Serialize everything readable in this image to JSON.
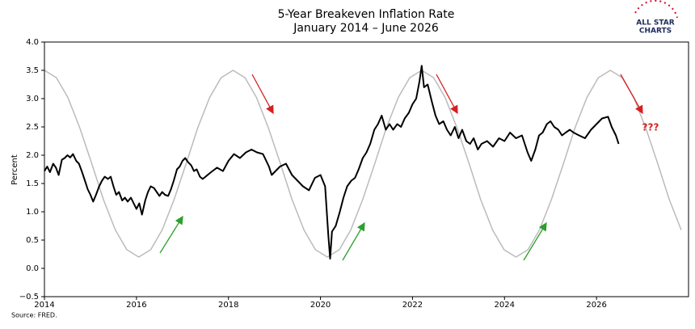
{
  "chart_data": {
    "type": "line",
    "title": "5-Year Breakeven Inflation Rate",
    "subtitle": "January 2014 – June 2026",
    "ylabel": "Percent",
    "source": "Source: FRED.",
    "annotation": "???",
    "logo": {
      "line1": "ALL STAR",
      "line2": "CHARTS"
    },
    "xlim": [
      2014,
      2028
    ],
    "xticks": [
      2014,
      2016,
      2018,
      2020,
      2022,
      2024,
      2026
    ],
    "ylim": [
      -0.5,
      4.0
    ],
    "yticks": [
      {
        "value": -0.5,
        "label": "−0.5"
      },
      {
        "value": 0,
        "label": "0.0"
      },
      0.5,
      {
        "value": 1,
        "label": "1.0"
      },
      1.5,
      {
        "value": 2,
        "label": "2.0"
      },
      2.5,
      {
        "value": 3,
        "label": "3.0"
      },
      3.5,
      {
        "value": 4,
        "label": "4.0"
      }
    ],
    "grid": false,
    "series": [
      {
        "color": "#bbbbbb",
        "x": [
          2014.0,
          2014.26,
          2014.51,
          2014.77,
          2015.03,
          2015.28,
          2015.54,
          2015.79,
          2016.05,
          2016.31,
          2016.56,
          2016.82,
          2017.08,
          2017.33,
          2017.59,
          2017.84,
          2018.1,
          2018.36,
          2018.61,
          2018.87,
          2019.13,
          2019.38,
          2019.64,
          2019.89,
          2020.15,
          2020.41,
          2020.66,
          2020.92,
          2021.18,
          2021.43,
          2021.69,
          2021.94,
          2022.2,
          2022.46,
          2022.71,
          2022.97,
          2023.23,
          2023.48,
          2023.74,
          2023.99,
          2024.25,
          2024.51,
          2024.76,
          2025.02,
          2025.28,
          2025.53,
          2025.79,
          2026.04,
          2026.3,
          2026.56,
          2026.81,
          2027.07,
          2027.33,
          2027.58,
          2027.84
        ],
        "values": [
          3.5,
          3.37,
          3.02,
          2.48,
          1.85,
          1.22,
          0.68,
          0.33,
          0.2,
          0.33,
          0.68,
          1.22,
          1.85,
          2.48,
          3.02,
          3.37,
          3.5,
          3.37,
          3.02,
          2.48,
          1.85,
          1.22,
          0.68,
          0.33,
          0.2,
          0.33,
          0.68,
          1.22,
          1.85,
          2.48,
          3.02,
          3.37,
          3.5,
          3.37,
          3.02,
          2.48,
          1.85,
          1.22,
          0.68,
          0.33,
          0.2,
          0.33,
          0.68,
          1.22,
          1.85,
          2.48,
          3.02,
          3.37,
          3.5,
          3.37,
          3.02,
          2.48,
          1.85,
          1.22,
          0.68
        ]
      },
      {
        "color": "#000000",
        "x": [
          2014.0,
          2014.06,
          2014.12,
          2014.19,
          2014.25,
          2014.31,
          2014.38,
          2014.44,
          2014.5,
          2014.56,
          2014.62,
          2014.69,
          2014.75,
          2014.81,
          2014.88,
          2014.94,
          2015.0,
          2015.06,
          2015.12,
          2015.19,
          2015.25,
          2015.31,
          2015.38,
          2015.44,
          2015.5,
          2015.56,
          2015.62,
          2015.69,
          2015.75,
          2015.81,
          2015.88,
          2015.94,
          2016.0,
          2016.06,
          2016.12,
          2016.19,
          2016.25,
          2016.31,
          2016.38,
          2016.44,
          2016.5,
          2016.56,
          2016.62,
          2016.69,
          2016.75,
          2016.81,
          2016.88,
          2016.94,
          2017.0,
          2017.06,
          2017.12,
          2017.19,
          2017.25,
          2017.31,
          2017.38,
          2017.44,
          2017.5,
          2017.62,
          2017.75,
          2017.88,
          2018.0,
          2018.12,
          2018.25,
          2018.38,
          2018.5,
          2018.62,
          2018.75,
          2018.88,
          2018.94,
          2019.0,
          2019.12,
          2019.25,
          2019.38,
          2019.5,
          2019.62,
          2019.75,
          2019.88,
          2020.0,
          2020.1,
          2020.17,
          2020.21,
          2020.25,
          2020.33,
          2020.42,
          2020.5,
          2020.58,
          2020.67,
          2020.75,
          2020.83,
          2020.92,
          2021.0,
          2021.08,
          2021.17,
          2021.25,
          2021.33,
          2021.42,
          2021.5,
          2021.58,
          2021.67,
          2021.75,
          2021.83,
          2021.92,
          2022.0,
          2022.08,
          2022.15,
          2022.2,
          2022.25,
          2022.33,
          2022.42,
          2022.5,
          2022.58,
          2022.67,
          2022.75,
          2022.83,
          2022.92,
          2023.0,
          2023.08,
          2023.17,
          2023.25,
          2023.33,
          2023.42,
          2023.5,
          2023.62,
          2023.75,
          2023.88,
          2024.0,
          2024.12,
          2024.25,
          2024.38,
          2024.5,
          2024.58,
          2024.67,
          2024.75,
          2024.83,
          2024.92,
          2025.0,
          2025.08,
          2025.17,
          2025.25,
          2025.33,
          2025.42,
          2025.5,
          2025.62,
          2025.75,
          2025.88,
          2026.0,
          2026.12,
          2026.25,
          2026.33,
          2026.42,
          2026.48
        ],
        "values": [
          1.72,
          1.8,
          1.7,
          1.85,
          1.78,
          1.65,
          1.92,
          1.95,
          2.0,
          1.96,
          2.02,
          1.9,
          1.85,
          1.72,
          1.55,
          1.4,
          1.3,
          1.18,
          1.3,
          1.45,
          1.55,
          1.62,
          1.58,
          1.62,
          1.45,
          1.3,
          1.35,
          1.2,
          1.25,
          1.18,
          1.25,
          1.15,
          1.05,
          1.15,
          0.95,
          1.2,
          1.35,
          1.45,
          1.42,
          1.35,
          1.28,
          1.35,
          1.3,
          1.28,
          1.4,
          1.55,
          1.75,
          1.8,
          1.9,
          1.95,
          1.88,
          1.82,
          1.72,
          1.75,
          1.62,
          1.58,
          1.62,
          1.7,
          1.78,
          1.72,
          1.9,
          2.02,
          1.95,
          2.05,
          2.1,
          2.05,
          2.02,
          1.8,
          1.65,
          1.7,
          1.8,
          1.85,
          1.65,
          1.55,
          1.45,
          1.38,
          1.6,
          1.65,
          1.45,
          0.6,
          0.17,
          0.65,
          0.75,
          1.0,
          1.25,
          1.45,
          1.55,
          1.6,
          1.75,
          1.95,
          2.05,
          2.2,
          2.45,
          2.55,
          2.7,
          2.45,
          2.55,
          2.45,
          2.55,
          2.5,
          2.65,
          2.75,
          2.9,
          3.0,
          3.3,
          3.58,
          3.2,
          3.25,
          2.95,
          2.7,
          2.55,
          2.6,
          2.45,
          2.35,
          2.5,
          2.3,
          2.45,
          2.25,
          2.2,
          2.3,
          2.1,
          2.2,
          2.25,
          2.15,
          2.3,
          2.25,
          2.4,
          2.3,
          2.35,
          2.05,
          1.9,
          2.1,
          2.35,
          2.4,
          2.55,
          2.6,
          2.5,
          2.45,
          2.35,
          2.4,
          2.45,
          2.4,
          2.35,
          2.3,
          2.45,
          2.55,
          2.65,
          2.68,
          2.5,
          2.35,
          2.2
        ]
      }
    ]
  }
}
